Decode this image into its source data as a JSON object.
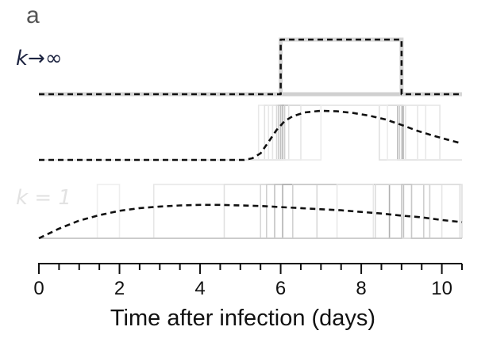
{
  "chart_data": {
    "type": "line",
    "panel_label": "a",
    "xlabel": "Time after infection (days)",
    "xlim": [
      0,
      10.5
    ],
    "xticks_major": [
      0,
      2,
      4,
      6,
      8,
      10
    ],
    "xtick_labels": [
      "0",
      "2",
      "4",
      "6",
      "8",
      "10"
    ],
    "xticks_minor_step": 0.5,
    "rows": [
      {
        "name": "step",
        "label": "k→∞",
        "ylim": [
          0,
          1
        ],
        "samples": [],
        "mean_curve": {
          "x": [
            0,
            6,
            6,
            9,
            9,
            10.5
          ],
          "y": [
            0,
            0,
            1,
            1,
            0,
            0
          ]
        }
      },
      {
        "name": "sharp",
        "label": "",
        "ylim": [
          0,
          1
        ],
        "samples": [
          {
            "start": 5.45,
            "end": 9.05,
            "color": "#e8e8e8"
          },
          {
            "start": 5.6,
            "end": 9.1,
            "color": "#e3e3e3"
          },
          {
            "start": 5.7,
            "end": 9.6,
            "color": "#e8e8e8"
          },
          {
            "start": 5.8,
            "end": 9.95,
            "color": "#e5e5e5"
          },
          {
            "start": 5.9,
            "end": 9.0,
            "color": "#d9d9d9"
          },
          {
            "start": 5.95,
            "end": 9.02,
            "color": "#c8c8c8"
          },
          {
            "start": 6.0,
            "end": 8.9,
            "color": "#bfbfbf"
          },
          {
            "start": 6.05,
            "end": 9.04,
            "color": "#b5b5b5"
          },
          {
            "start": 6.1,
            "end": 8.95,
            "color": "#cfcfcf"
          },
          {
            "start": 6.2,
            "end": 8.45,
            "color": "#e0e0e0"
          },
          {
            "start": 6.5,
            "end": 9.4,
            "color": "#e6e6e6"
          },
          {
            "start": 7.0,
            "end": 8.65,
            "color": "#ececec"
          }
        ],
        "mean_curve": {
          "x": [
            0,
            5.1,
            5.3,
            5.5,
            5.7,
            5.9,
            6.1,
            6.3,
            6.6,
            7.0,
            7.4,
            7.8,
            8.2,
            8.6,
            9.0,
            9.4,
            9.8,
            10.2,
            10.5
          ],
          "y": [
            0,
            0,
            0.03,
            0.12,
            0.33,
            0.55,
            0.71,
            0.8,
            0.87,
            0.9,
            0.89,
            0.86,
            0.81,
            0.74,
            0.64,
            0.53,
            0.44,
            0.36,
            0.3
          ]
        }
      },
      {
        "name": "k1",
        "label": "k = 1",
        "ylim": [
          0,
          1
        ],
        "samples": [
          {
            "start": 1.45,
            "end": 2.0,
            "color": "#eeeeee"
          },
          {
            "start": 2.85,
            "end": 10.0,
            "color": "#e6e6e6"
          },
          {
            "start": 4.6,
            "end": 10.5,
            "color": "#e0e0e0"
          },
          {
            "start": 5.5,
            "end": 6.9,
            "color": "#d8d8d8"
          },
          {
            "start": 5.65,
            "end": 9.55,
            "color": "#cfcfcf"
          },
          {
            "start": 5.85,
            "end": 9.05,
            "color": "#c2c2c2"
          },
          {
            "start": 6.05,
            "end": 8.7,
            "color": "#b0b0b0"
          },
          {
            "start": 6.3,
            "end": 9.7,
            "color": "#d2d2d2"
          },
          {
            "start": 7.4,
            "end": 8.3,
            "color": "#e8e8e8"
          },
          {
            "start": 8.35,
            "end": 10.45,
            "color": "#dcdcdc"
          },
          {
            "start": 9.0,
            "end": 9.25,
            "color": "#c8c8c8"
          }
        ],
        "mean_curve": {
          "x": [
            0,
            0.5,
            1,
            1.5,
            2,
            2.5,
            3,
            3.5,
            4,
            4.5,
            5,
            5.5,
            6,
            6.5,
            7,
            7.5,
            8,
            8.5,
            9,
            9.5,
            10,
            10.5
          ],
          "y": [
            0,
            0.18,
            0.33,
            0.43,
            0.51,
            0.56,
            0.59,
            0.61,
            0.62,
            0.62,
            0.61,
            0.6,
            0.58,
            0.56,
            0.54,
            0.52,
            0.49,
            0.46,
            0.42,
            0.39,
            0.34,
            0.3
          ]
        }
      }
    ]
  }
}
